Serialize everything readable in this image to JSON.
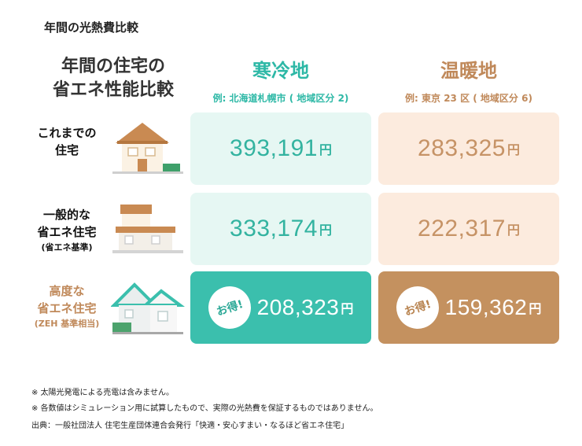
{
  "page_title": "年間の光熱費比較",
  "header": {
    "left_line1": "年間の住宅の",
    "left_line2": "省エネ性能比較"
  },
  "regions": [
    {
      "name": "寒冷地",
      "sub": "例: 北海道札幌市 ( 地域区分 2)",
      "color": "#2db8a6"
    },
    {
      "name": "温暖地",
      "sub": "例: 東京 23 区 ( 地域区分 6)",
      "color": "#c0895a"
    }
  ],
  "rows": [
    {
      "label": "これまでの\n住宅",
      "note": "",
      "cold": "393,191",
      "warm": "283,325"
    },
    {
      "label": "一般的な\n省エネ住宅",
      "note": "(省エネ基準)",
      "cold": "333,174",
      "warm": "222,317"
    },
    {
      "label": "高度な\n省エネ住宅",
      "note": "(ZEH 基準相当)",
      "cold": "208,323",
      "warm": "159,362",
      "badge": "お得!"
    }
  ],
  "yen_unit": "円",
  "footnotes": [
    "※  太陽光発電による売電は含みません。",
    "※  各数値はシミュレーション用に試算したもので、実際の光熱費を保証するものではありません。",
    "出典：一般社団法人 住宅生産団体連合会発行「快適・安心すまい・なるほど省エネ住宅」"
  ],
  "colors": {
    "cold_accent": "#3bbfad",
    "cold_light": "#e6f7f3",
    "warm_accent": "#c4915f",
    "warm_light": "#fcebde"
  },
  "icons": [
    "old-house-icon",
    "standard-house-icon",
    "zeh-house-icon"
  ]
}
